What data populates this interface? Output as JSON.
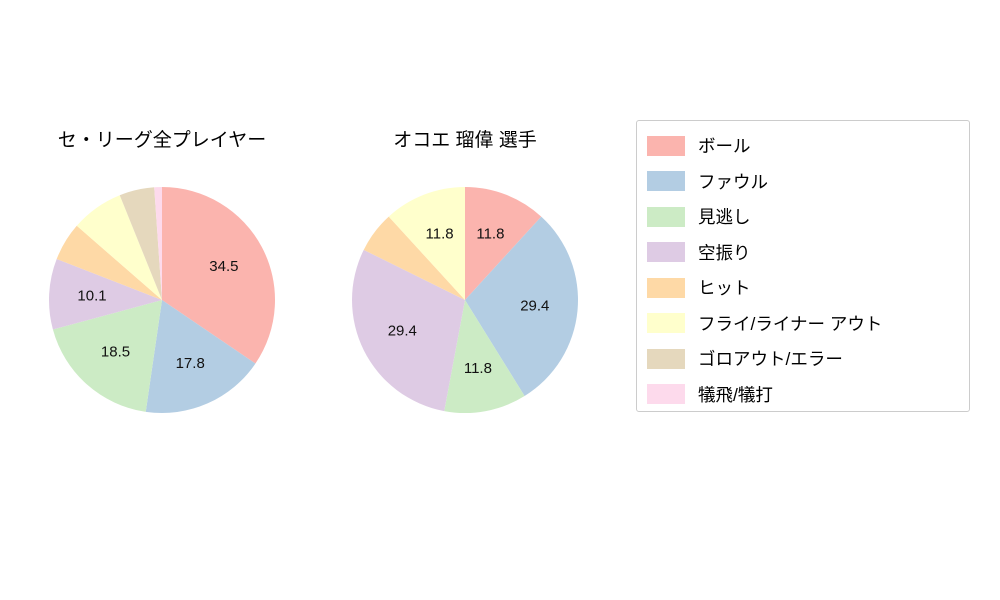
{
  "palette": [
    "#fbb4ae",
    "#b3cde3",
    "#ccebc5",
    "#decbe4",
    "#fed9a6",
    "#ffffcc",
    "#e5d8bd",
    "#fddaec"
  ],
  "legend": {
    "entries": [
      {
        "label": "ボール",
        "color": "#fbb4ae"
      },
      {
        "label": "ファウル",
        "color": "#b3cde3"
      },
      {
        "label": "見逃し",
        "color": "#ccebc5"
      },
      {
        "label": "空振り",
        "color": "#decbe4"
      },
      {
        "label": "ヒット",
        "color": "#fed9a6"
      },
      {
        "label": "フライ/ライナー アウト",
        "color": "#ffffcc"
      },
      {
        "label": "ゴロアウト/エラー",
        "color": "#e5d8bd"
      },
      {
        "label": "犠飛/犠打",
        "color": "#fddaec"
      }
    ]
  },
  "chart_data": [
    {
      "type": "pie",
      "title": "セ・リーグ全プレイヤー",
      "labels": [
        "ボール",
        "ファウル",
        "見逃し",
        "空振り",
        "ヒット",
        "フライ/ライナー アウト",
        "ゴロアウト/エラー",
        "犠飛/犠打"
      ],
      "values": [
        34.5,
        17.8,
        18.5,
        10.1,
        5.5,
        7.5,
        5.0,
        1.1
      ],
      "value_labels": [
        "34.5",
        "17.8",
        "18.5",
        "10.1",
        "",
        "",
        "",
        ""
      ],
      "start_angle": "top",
      "direction": "clockwise",
      "legend_position": "right"
    },
    {
      "type": "pie",
      "title": "オコエ 瑠偉 選手",
      "labels": [
        "ボール",
        "ファウル",
        "見逃し",
        "空振り",
        "ヒット",
        "フライ/ライナー アウト",
        "ゴロアウト/エラー",
        "犠飛/犠打"
      ],
      "values": [
        11.8,
        29.4,
        11.8,
        29.4,
        5.9,
        11.8,
        0,
        0
      ],
      "value_labels": [
        "11.8",
        "29.4",
        "11.8",
        "29.4",
        "",
        "11.8",
        "",
        ""
      ],
      "start_angle": "top",
      "direction": "clockwise",
      "legend_position": "right"
    }
  ]
}
